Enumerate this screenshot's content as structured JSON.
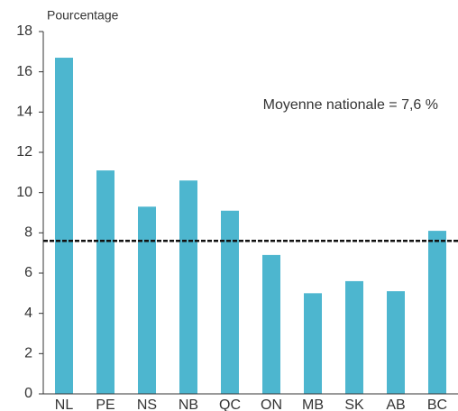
{
  "chart_data": {
    "type": "bar",
    "ylabel": "Pourcentage",
    "categories": [
      "NL",
      "PE",
      "NS",
      "NB",
      "QC",
      "ON",
      "MB",
      "SK",
      "AB",
      "BC"
    ],
    "values": [
      16.7,
      11.1,
      9.3,
      10.6,
      9.1,
      6.9,
      5.0,
      5.6,
      5.1,
      8.1
    ],
    "color": "#4db6cf",
    "ylim": [
      0,
      18
    ],
    "yticks": [
      0,
      2,
      4,
      6,
      8,
      10,
      12,
      14,
      16,
      18
    ],
    "grid": false,
    "reference_line": {
      "value": 7.6,
      "label": "Moyenne nationale = 7,6 %"
    }
  }
}
